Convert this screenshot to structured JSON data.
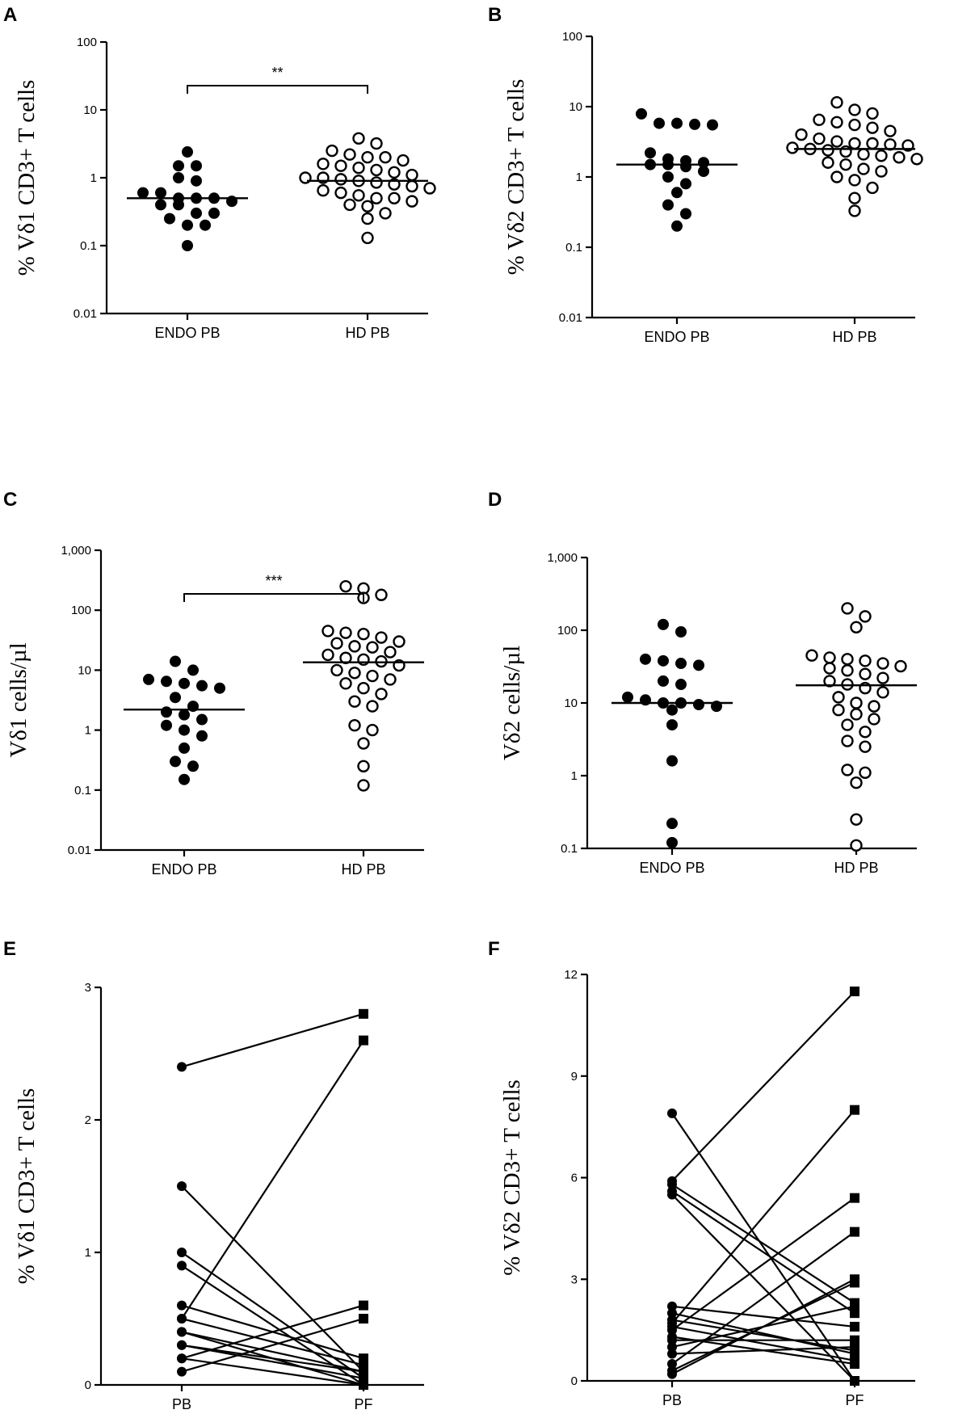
{
  "figure": {
    "panels": [
      "A",
      "B",
      "C",
      "D",
      "E",
      "F"
    ]
  },
  "chart_data": [
    {
      "panel": "A",
      "type": "scatter",
      "ylabel": "% Vδ1 CD3+ T cells",
      "yscale": "log",
      "ylim": [
        0.01,
        100
      ],
      "yticks": [
        "0.01",
        "0.1",
        "1",
        "10",
        "100"
      ],
      "categories": [
        "ENDO PB",
        "HD PB"
      ],
      "series": [
        {
          "name": "ENDO PB",
          "marker": "filled-circle",
          "median": 0.5,
          "values": [
            2.4,
            1.5,
            1.5,
            1.0,
            0.9,
            0.6,
            0.6,
            0.5,
            0.5,
            0.5,
            0.45,
            0.4,
            0.4,
            0.3,
            0.3,
            0.25,
            0.2,
            0.2,
            0.1
          ]
        },
        {
          "name": "HD PB",
          "marker": "open-circle",
          "median": 0.9,
          "values": [
            3.8,
            3.2,
            2.5,
            2.2,
            2.0,
            2.0,
            1.8,
            1.6,
            1.5,
            1.4,
            1.3,
            1.2,
            1.1,
            1.0,
            1.0,
            0.95,
            0.9,
            0.85,
            0.8,
            0.75,
            0.7,
            0.65,
            0.6,
            0.55,
            0.5,
            0.5,
            0.45,
            0.4,
            0.38,
            0.3,
            0.25,
            0.13
          ]
        }
      ],
      "significance": {
        "label": "**",
        "between": [
          "ENDO PB",
          "HD PB"
        ]
      }
    },
    {
      "panel": "B",
      "type": "scatter",
      "ylabel": "% Vδ2 CD3+ T cells",
      "yscale": "log",
      "ylim": [
        0.01,
        100
      ],
      "yticks": [
        "0.01",
        "0.1",
        "1",
        "10",
        "100"
      ],
      "categories": [
        "ENDO PB",
        "HD PB"
      ],
      "series": [
        {
          "name": "ENDO PB",
          "marker": "filled-circle",
          "median": 1.5,
          "values": [
            7.9,
            5.8,
            5.8,
            5.6,
            5.5,
            2.2,
            1.8,
            1.7,
            1.6,
            1.5,
            1.5,
            1.4,
            1.2,
            1.0,
            0.8,
            0.6,
            0.4,
            0.3,
            0.2
          ]
        },
        {
          "name": "HD PB",
          "marker": "open-circle",
          "median": 2.5,
          "values": [
            11.5,
            9.0,
            8.0,
            6.5,
            6.0,
            5.5,
            5.0,
            4.5,
            4.0,
            3.5,
            3.2,
            3.0,
            3.0,
            2.9,
            2.8,
            2.6,
            2.5,
            2.4,
            2.3,
            2.1,
            2.0,
            1.9,
            1.8,
            1.6,
            1.5,
            1.3,
            1.2,
            1.0,
            0.9,
            0.7,
            0.5,
            0.33
          ]
        }
      ]
    },
    {
      "panel": "C",
      "type": "scatter",
      "ylabel": "Vδ1 cells/µl",
      "yscale": "log",
      "ylim": [
        0.01,
        1000
      ],
      "yticks": [
        "0.01",
        "0.1",
        "1",
        "10",
        "100",
        "1,000"
      ],
      "categories": [
        "ENDO PB",
        "HD PB"
      ],
      "series": [
        {
          "name": "ENDO PB",
          "marker": "filled-circle",
          "median": 2.2,
          "values": [
            14,
            10,
            7,
            6.5,
            6,
            5.5,
            5,
            3.5,
            2.5,
            2.0,
            1.8,
            1.5,
            1.2,
            1.0,
            0.8,
            0.5,
            0.3,
            0.25,
            0.15
          ]
        },
        {
          "name": "HD PB",
          "marker": "open-circle",
          "median": 13.5,
          "values": [
            250,
            230,
            180,
            160,
            45,
            42,
            40,
            35,
            30,
            28,
            25,
            24,
            20,
            18,
            16,
            15,
            14,
            12,
            10,
            9,
            8,
            7,
            6,
            5,
            4,
            3,
            2.5,
            1.2,
            1.0,
            0.6,
            0.25,
            0.12
          ]
        }
      ],
      "significance": {
        "label": "***",
        "between": [
          "ENDO PB",
          "HD PB"
        ]
      }
    },
    {
      "panel": "D",
      "type": "scatter",
      "ylabel": "Vδ2 cells/µl",
      "yscale": "log",
      "ylim": [
        0.1,
        1000
      ],
      "yticks": [
        "0.1",
        "1",
        "10",
        "100",
        "1,000"
      ],
      "categories": [
        "ENDO PB",
        "HD PB"
      ],
      "series": [
        {
          "name": "ENDO PB",
          "marker": "filled-circle",
          "median": 10,
          "values": [
            120,
            95,
            40,
            38,
            35,
            33,
            20,
            18,
            12,
            11,
            10,
            10,
            9.5,
            9,
            8,
            5,
            1.6,
            0.22,
            0.12
          ]
        },
        {
          "name": "HD PB",
          "marker": "open-circle",
          "median": 17.5,
          "values": [
            200,
            155,
            110,
            45,
            42,
            40,
            38,
            35,
            32,
            30,
            28,
            25,
            22,
            20,
            18,
            16,
            14,
            12,
            10,
            9,
            8,
            7,
            6,
            5,
            4,
            3,
            2.5,
            1.2,
            1.1,
            0.8,
            0.25,
            0.11
          ]
        }
      ]
    },
    {
      "panel": "E",
      "type": "line",
      "ylabel": "% Vδ1 CD3+ T cells",
      "ylim": [
        0,
        3
      ],
      "yticks": [
        "0",
        "1",
        "2",
        "3"
      ],
      "categories": [
        "PB",
        "PF"
      ],
      "pairs": [
        [
          2.4,
          2.8
        ],
        [
          1.5,
          0.1
        ],
        [
          1.0,
          0.05
        ],
        [
          0.9,
          0.0
        ],
        [
          0.6,
          0.2
        ],
        [
          0.5,
          2.6
        ],
        [
          0.5,
          0.15
        ],
        [
          0.4,
          0.1
        ],
        [
          0.4,
          0.0
        ],
        [
          0.3,
          0.05
        ],
        [
          0.3,
          0.1
        ],
        [
          0.2,
          0.0
        ],
        [
          0.2,
          0.6
        ],
        [
          0.1,
          0.5
        ]
      ]
    },
    {
      "panel": "F",
      "type": "line",
      "ylabel": "% Vδ2 CD3+ T cells",
      "ylim": [
        0,
        12
      ],
      "yticks": [
        "0",
        "3",
        "6",
        "9",
        "12"
      ],
      "categories": [
        "PB",
        "PF"
      ],
      "pairs": [
        [
          7.9,
          0.0
        ],
        [
          5.9,
          11.5
        ],
        [
          5.8,
          2.3
        ],
        [
          5.6,
          2.0
        ],
        [
          5.5,
          0.0
        ],
        [
          2.2,
          1.6
        ],
        [
          2.0,
          0.8
        ],
        [
          1.8,
          0.9
        ],
        [
          1.7,
          8.0
        ],
        [
          1.6,
          0.6
        ],
        [
          1.5,
          5.4
        ],
        [
          1.3,
          0.5
        ],
        [
          1.2,
          1.2
        ],
        [
          1.0,
          2.2
        ],
        [
          0.8,
          1.0
        ],
        [
          0.5,
          4.4
        ],
        [
          0.3,
          2.9
        ],
        [
          0.2,
          3.0
        ]
      ]
    }
  ]
}
